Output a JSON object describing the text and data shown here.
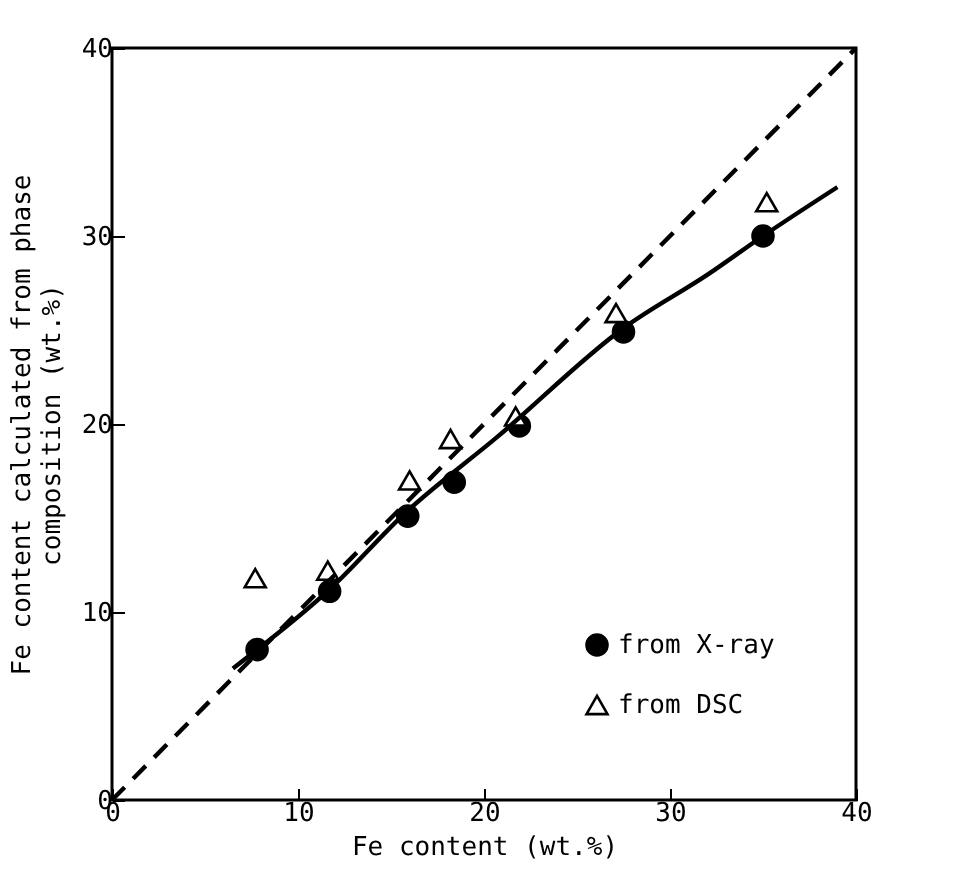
{
  "chart_data": {
    "type": "scatter",
    "xlabel": "Fe content (wt.%)",
    "ylabel": "Fe content calculated from phase composition (wt.%)",
    "xlim": [
      0,
      40
    ],
    "ylim": [
      0,
      40
    ],
    "xticks": [
      0,
      10,
      20,
      30,
      40
    ],
    "yticks": [
      0,
      10,
      20,
      30,
      40
    ],
    "grid": false,
    "legend": "bottom right",
    "series": [
      {
        "name": "from X-ray",
        "marker": "circle",
        "color": "#000000",
        "x": [
          7.8,
          11.7,
          15.9,
          18.4,
          21.9,
          27.5,
          35.0
        ],
        "values": [
          8.0,
          11.1,
          15.1,
          16.9,
          19.9,
          24.9,
          30.0
        ]
      },
      {
        "name": "from DSC",
        "marker": "triangle",
        "color": "#000000",
        "x": [
          7.7,
          11.6,
          16.0,
          18.2,
          21.7,
          27.1,
          35.2
        ],
        "values": [
          11.8,
          12.2,
          17.0,
          19.2,
          20.4,
          25.9,
          31.8
        ]
      },
      {
        "type": "line",
        "line_style": "solid",
        "color": "#000000",
        "x": [
          6.5,
          11.7,
          15.8,
          20.7,
          27.5,
          32.1,
          35.0,
          39.0
        ],
        "values": [
          7.0,
          11.2,
          15.3,
          19.3,
          25.1,
          28.0,
          30.0,
          32.6
        ]
      },
      {
        "type": "line",
        "line_style": "dashed",
        "color": "#000000",
        "x": [
          0,
          40
        ],
        "values": [
          0,
          40
        ]
      }
    ]
  }
}
